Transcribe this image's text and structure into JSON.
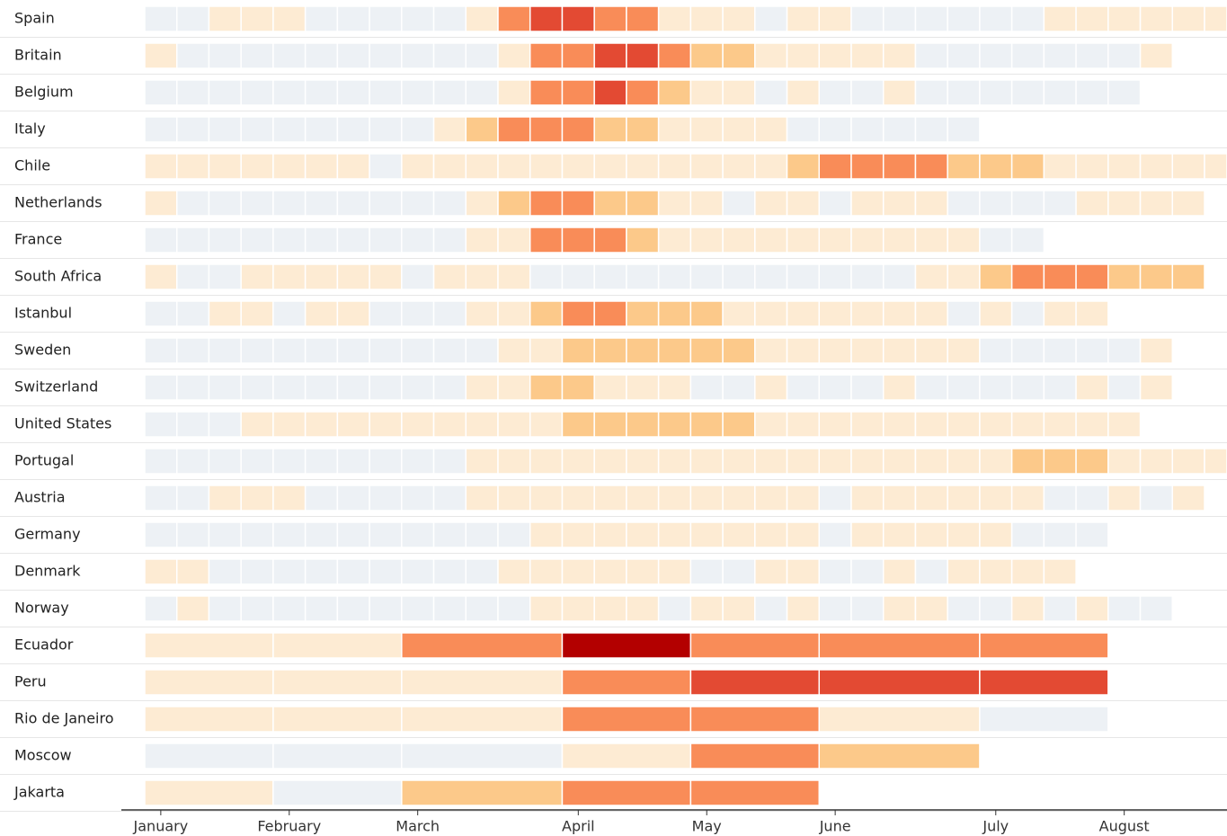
{
  "chart_data": {
    "type": "heatmap",
    "colors": [
      "#edf1f5",
      "#fdebd3",
      "#fcc98a",
      "#f98c58",
      "#e34a33",
      "#b30000"
    ],
    "xlim": [
      0,
      33.7
    ],
    "xticks": [
      {
        "value": 0.5,
        "label": "January"
      },
      {
        "value": 4.5,
        "label": "February"
      },
      {
        "value": 8.5,
        "label": "March"
      },
      {
        "value": 13.5,
        "label": "April"
      },
      {
        "value": 17.5,
        "label": "May"
      },
      {
        "value": 21.5,
        "label": "June"
      },
      {
        "value": 26.5,
        "label": "July"
      },
      {
        "value": 30.5,
        "label": "August"
      }
    ],
    "rows": [
      {
        "name": "Spain",
        "values": [
          0,
          0,
          1,
          1,
          1,
          0,
          0,
          0,
          0,
          0,
          1,
          3,
          4,
          4,
          3,
          3,
          1,
          1,
          1,
          0,
          1,
          1,
          0,
          0,
          0,
          0,
          0,
          0,
          1,
          1,
          1,
          1,
          1,
          1
        ]
      },
      {
        "name": "Britain",
        "values": [
          1,
          0,
          0,
          0,
          0,
          0,
          0,
          0,
          0,
          0,
          0,
          1,
          3,
          3,
          4,
          4,
          3,
          2,
          2,
          1,
          1,
          1,
          1,
          1,
          0,
          0,
          0,
          0,
          0,
          0,
          0,
          1
        ]
      },
      {
        "name": "Belgium",
        "values": [
          0,
          0,
          0,
          0,
          0,
          0,
          0,
          0,
          0,
          0,
          0,
          1,
          3,
          3,
          4,
          3,
          2,
          1,
          1,
          0,
          1,
          0,
          0,
          1,
          0,
          0,
          0,
          0,
          0,
          0,
          0
        ]
      },
      {
        "name": "Italy",
        "values": [
          0,
          0,
          0,
          0,
          0,
          0,
          0,
          0,
          0,
          1,
          2,
          3,
          3,
          3,
          2,
          2,
          1,
          1,
          1,
          1,
          0,
          0,
          0,
          0,
          0,
          0
        ]
      },
      {
        "name": "Chile",
        "values": [
          1,
          1,
          1,
          1,
          1,
          1,
          1,
          0,
          1,
          1,
          1,
          1,
          1,
          1,
          1,
          1,
          1,
          1,
          1,
          1,
          2,
          3,
          3,
          3,
          3,
          2,
          2,
          2,
          1,
          1,
          1,
          1,
          1,
          1
        ]
      },
      {
        "name": "Netherlands",
        "values": [
          1,
          0,
          0,
          0,
          0,
          0,
          0,
          0,
          0,
          0,
          1,
          2,
          3,
          3,
          2,
          2,
          1,
          1,
          0,
          1,
          1,
          0,
          1,
          1,
          1,
          0,
          0,
          0,
          0,
          1,
          1,
          1,
          1
        ]
      },
      {
        "name": "France",
        "values": [
          0,
          0,
          0,
          0,
          0,
          0,
          0,
          0,
          0,
          0,
          1,
          1,
          3,
          3,
          3,
          2,
          1,
          1,
          1,
          1,
          1,
          1,
          1,
          1,
          1,
          1,
          0,
          0
        ]
      },
      {
        "name": "South Africa",
        "values": [
          1,
          0,
          0,
          1,
          1,
          1,
          1,
          1,
          0,
          1,
          1,
          1,
          0,
          0,
          0,
          0,
          0,
          0,
          0,
          0,
          0,
          0,
          0,
          0,
          1,
          1,
          2,
          3,
          3,
          3,
          2,
          2,
          2
        ]
      },
      {
        "name": "Istanbul",
        "values": [
          0,
          0,
          1,
          1,
          0,
          1,
          1,
          0,
          0,
          0,
          1,
          1,
          2,
          3,
          3,
          2,
          2,
          2,
          1,
          1,
          1,
          1,
          1,
          1,
          1,
          0,
          1,
          0,
          1,
          1
        ]
      },
      {
        "name": "Sweden",
        "values": [
          0,
          0,
          0,
          0,
          0,
          0,
          0,
          0,
          0,
          0,
          0,
          1,
          1,
          2,
          2,
          2,
          2,
          2,
          2,
          1,
          1,
          1,
          1,
          1,
          1,
          1,
          0,
          0,
          0,
          0,
          0,
          1
        ]
      },
      {
        "name": "Switzerland",
        "values": [
          0,
          0,
          0,
          0,
          0,
          0,
          0,
          0,
          0,
          0,
          1,
          1,
          2,
          2,
          1,
          1,
          1,
          0,
          0,
          1,
          0,
          0,
          0,
          1,
          0,
          0,
          0,
          0,
          0,
          1,
          0,
          1
        ]
      },
      {
        "name": "United States",
        "values": [
          0,
          0,
          0,
          1,
          1,
          1,
          1,
          1,
          1,
          1,
          1,
          1,
          1,
          2,
          2,
          2,
          2,
          2,
          2,
          1,
          1,
          1,
          1,
          1,
          1,
          1,
          1,
          1,
          1,
          1,
          1
        ]
      },
      {
        "name": "Portugal",
        "values": [
          0,
          0,
          0,
          0,
          0,
          0,
          0,
          0,
          0,
          0,
          1,
          1,
          1,
          1,
          1,
          1,
          1,
          1,
          1,
          1,
          1,
          1,
          1,
          1,
          1,
          1,
          1,
          2,
          2,
          2,
          1,
          1,
          1,
          1
        ]
      },
      {
        "name": "Austria",
        "values": [
          0,
          0,
          1,
          1,
          1,
          0,
          0,
          0,
          0,
          0,
          1,
          1,
          1,
          1,
          1,
          1,
          1,
          1,
          1,
          1,
          1,
          0,
          1,
          1,
          1,
          1,
          1,
          1,
          0,
          0,
          1,
          0,
          1
        ]
      },
      {
        "name": "Germany",
        "values": [
          0,
          0,
          0,
          0,
          0,
          0,
          0,
          0,
          0,
          0,
          0,
          0,
          1,
          1,
          1,
          1,
          1,
          1,
          1,
          1,
          1,
          0,
          1,
          1,
          1,
          1,
          1,
          0,
          0,
          0
        ]
      },
      {
        "name": "Denmark",
        "values": [
          1,
          1,
          0,
          0,
          0,
          0,
          0,
          0,
          0,
          0,
          0,
          1,
          1,
          1,
          1,
          1,
          1,
          0,
          0,
          1,
          1,
          0,
          0,
          1,
          0,
          1,
          1,
          1,
          1
        ]
      },
      {
        "name": "Norway",
        "values": [
          0,
          1,
          0,
          0,
          0,
          0,
          0,
          0,
          0,
          0,
          0,
          0,
          1,
          1,
          1,
          1,
          0,
          1,
          1,
          0,
          1,
          0,
          0,
          1,
          1,
          0,
          0,
          1,
          0,
          1,
          0,
          0
        ]
      },
      {
        "name": "Ecuador",
        "bins": [
          0,
          4,
          8,
          13,
          17,
          21,
          26,
          30
        ],
        "values": [
          1,
          1,
          3,
          5,
          3,
          3,
          3
        ]
      },
      {
        "name": "Peru",
        "bins": [
          0,
          4,
          8,
          13,
          17,
          21,
          26,
          30
        ],
        "values": [
          1,
          1,
          1,
          3,
          4,
          4,
          4
        ]
      },
      {
        "name": "Rio de Janeiro",
        "bins": [
          0,
          4,
          8,
          13,
          17,
          21,
          26,
          30
        ],
        "values": [
          1,
          1,
          1,
          3,
          3,
          1,
          0
        ]
      },
      {
        "name": "Moscow",
        "bins": [
          0,
          4,
          8,
          13,
          17,
          21,
          26
        ],
        "values": [
          0,
          0,
          0,
          1,
          3,
          2
        ]
      },
      {
        "name": "Jakarta",
        "bins": [
          0,
          4,
          8,
          13,
          17,
          21
        ],
        "values": [
          1,
          0,
          2,
          3,
          3
        ]
      }
    ]
  }
}
